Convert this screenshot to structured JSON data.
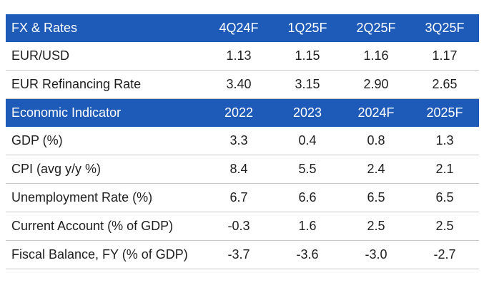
{
  "fx_section": {
    "header": [
      "FX & Rates",
      "4Q24F",
      "1Q25F",
      "2Q25F",
      "3Q25F"
    ],
    "rows": [
      [
        "EUR/USD",
        "1.13",
        "1.15",
        "1.16",
        "1.17"
      ],
      [
        "EUR Refinancing Rate",
        "3.40",
        "3.15",
        "2.90",
        "2.65"
      ]
    ]
  },
  "econ_section": {
    "header": [
      "Economic Indicator",
      "2022",
      "2023",
      "2024F",
      "2025F"
    ],
    "rows": [
      [
        "GDP (%)",
        "3.3",
        "0.4",
        "0.8",
        "1.3"
      ],
      [
        "CPI (avg y/y %)",
        "8.4",
        "5.5",
        "2.4",
        "2.1"
      ],
      [
        "Unemployment Rate (%)",
        "6.7",
        "6.6",
        "6.5",
        "6.5"
      ],
      [
        "Current Account (% of GDP)",
        "-0.3",
        "1.6",
        "2.5",
        "2.5"
      ],
      [
        "Fiscal Balance, FY (% of GDP)",
        "-3.7",
        "-3.6",
        "-3.0",
        "-2.7"
      ]
    ]
  },
  "colors": {
    "header_bg": "#1e5bb8",
    "header_text": "#ffffff",
    "row_divider": "#c9c9c9"
  }
}
